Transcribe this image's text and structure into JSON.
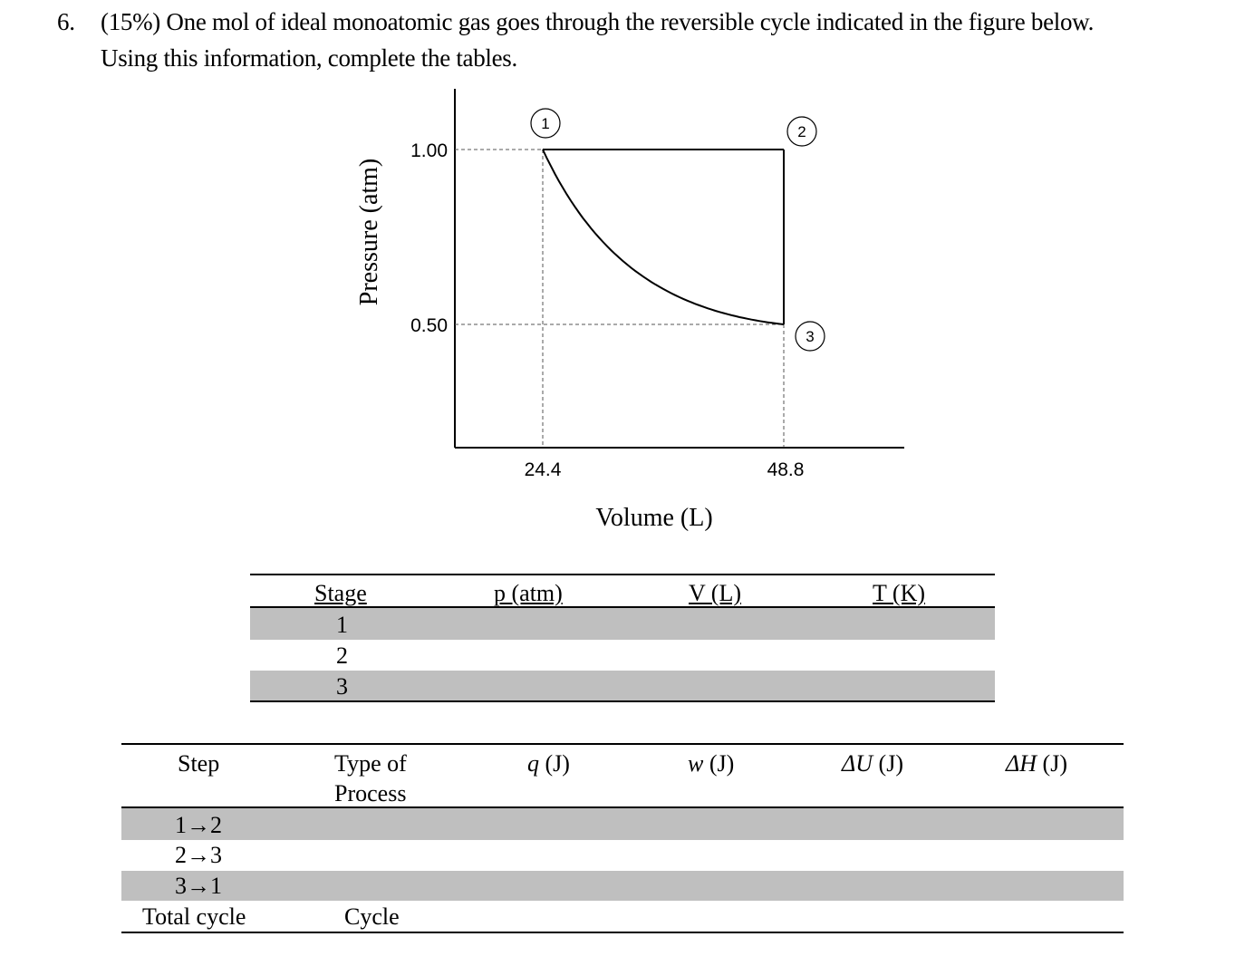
{
  "question": {
    "number": "6.",
    "line1": "(15%) One mol of ideal monoatomic gas goes through the reversible cycle indicated in the figure below.",
    "line2": "Using this information, complete the tables."
  },
  "chart_data": {
    "type": "line",
    "xlabel": "Volume (L)",
    "ylabel": "Pressure (atm)",
    "x_ticks": [
      "24.4",
      "48.8"
    ],
    "y_ticks": [
      "1.00",
      "0.50"
    ],
    "points": [
      {
        "label": "1",
        "x": 24.4,
        "y": 1.0
      },
      {
        "label": "2",
        "x": 48.8,
        "y": 1.0
      },
      {
        "label": "3",
        "x": 48.8,
        "y": 0.5
      }
    ],
    "grid": "dashed guide lines at tick values"
  },
  "table1": {
    "headers": [
      "Stage",
      "p (atm)",
      "V (L)",
      "T (K)"
    ],
    "rows": [
      "1",
      "2",
      "3"
    ]
  },
  "table2": {
    "headers": {
      "step": "Step",
      "type_line1": "Type of",
      "type_line2": "Process",
      "q_sym": "q",
      "q_unit": " (J)",
      "w_sym": "w",
      "w_unit": " (J)",
      "du_sym": "ΔU",
      "du_unit": " (J)",
      "dh_sym": "ΔH",
      "dh_unit": " (J)"
    },
    "rows": [
      {
        "step": "1→2",
        "type": ""
      },
      {
        "step": "2→3",
        "type": ""
      },
      {
        "step": "3→1",
        "type": ""
      },
      {
        "step": "Total cycle",
        "type": "Cycle"
      }
    ]
  }
}
